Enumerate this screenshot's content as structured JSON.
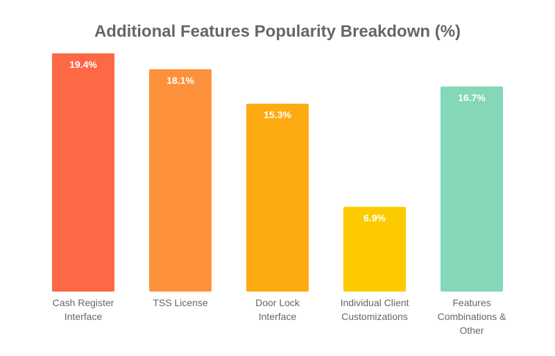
{
  "chart_data": {
    "type": "bar",
    "title": "Additional Features Popularity Breakdown (%)",
    "xlabel": "",
    "ylabel": "",
    "ylim": [
      0,
      19.4
    ],
    "grid": false,
    "legend": "none",
    "categories": [
      [
        "Cash Register",
        "Interface"
      ],
      [
        "TSS License"
      ],
      [
        "Door Lock",
        "Interface"
      ],
      [
        "Individual Client",
        "Customizations"
      ],
      [
        "Features",
        "Combinations &",
        "Other"
      ]
    ],
    "values": [
      19.4,
      18.1,
      15.3,
      6.9,
      16.7
    ],
    "data_labels": [
      "19.4%",
      "18.1%",
      "15.3%",
      "6.9%",
      "16.7%"
    ],
    "colors": [
      "#fd6845",
      "#fd913b",
      "#fdab11",
      "#fdca00",
      "#84d7b7"
    ]
  }
}
